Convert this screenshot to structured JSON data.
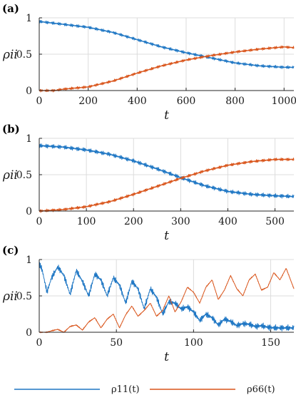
{
  "colors": {
    "series1": "#1f77c4",
    "series2": "#d9541a",
    "grid": "#dcdcdc",
    "axis": "#262626"
  },
  "legend": {
    "placement": "bottom",
    "series1_label": "ρ11(t)",
    "series2_label": "ρ66(t)"
  },
  "chart_data": [
    {
      "type": "line",
      "panel": "(a)",
      "xlabel": "t",
      "ylabel": "ρii",
      "xlim": [
        0,
        1040
      ],
      "ylim": [
        0,
        1
      ],
      "xticks": [
        0,
        200,
        400,
        600,
        800,
        1000
      ],
      "yticks": [
        0,
        0.5,
        1
      ],
      "grid": true,
      "series": [
        {
          "name": "ρ11(t)",
          "x": [
            0,
            100,
            200,
            300,
            400,
            500,
            600,
            700,
            800,
            900,
            1000,
            1040
          ],
          "values": [
            0.95,
            0.91,
            0.87,
            0.8,
            0.7,
            0.6,
            0.52,
            0.45,
            0.38,
            0.34,
            0.32,
            0.32
          ],
          "noise": 0.022
        },
        {
          "name": "ρ66(t)",
          "x": [
            0,
            60,
            100,
            200,
            300,
            400,
            500,
            600,
            700,
            800,
            900,
            1000,
            1040
          ],
          "values": [
            0.0,
            0.0,
            0.02,
            0.05,
            0.13,
            0.24,
            0.34,
            0.42,
            0.48,
            0.53,
            0.57,
            0.6,
            0.59
          ],
          "noise": 0.02
        }
      ]
    },
    {
      "type": "line",
      "panel": "(b)",
      "xlabel": "t",
      "ylabel": "ρii",
      "xlim": [
        0,
        540
      ],
      "ylim": [
        0,
        1
      ],
      "xticks": [
        0,
        100,
        200,
        300,
        400,
        500
      ],
      "yticks": [
        0,
        0.5,
        1
      ],
      "grid": true,
      "series": [
        {
          "name": "ρ11(t)",
          "x": [
            0,
            50,
            100,
            150,
            200,
            250,
            300,
            350,
            400,
            450,
            500,
            540
          ],
          "values": [
            0.9,
            0.88,
            0.84,
            0.78,
            0.69,
            0.58,
            0.46,
            0.35,
            0.27,
            0.23,
            0.21,
            0.2
          ],
          "noise": 0.03
        },
        {
          "name": "ρ66(t)",
          "x": [
            0,
            50,
            100,
            150,
            200,
            250,
            300,
            350,
            400,
            450,
            500,
            540
          ],
          "values": [
            0.0,
            0.02,
            0.06,
            0.13,
            0.23,
            0.34,
            0.45,
            0.55,
            0.63,
            0.68,
            0.71,
            0.71
          ],
          "noise": 0.022
        }
      ]
    },
    {
      "type": "line",
      "panel": "(c)",
      "xlabel": "t",
      "ylabel": "ρii",
      "xlim": [
        0,
        165
      ],
      "ylim": [
        0,
        1
      ],
      "xticks": [
        0,
        50,
        100,
        150
      ],
      "yticks": [
        0,
        0.5,
        1
      ],
      "grid": true,
      "series": [
        {
          "name": "ρ11(t)",
          "x": [
            0,
            2,
            5,
            8,
            12,
            16,
            20,
            24,
            28,
            32,
            36,
            40,
            44,
            48,
            52,
            56,
            60,
            64,
            68,
            72,
            76,
            80,
            84,
            88,
            92,
            96,
            100,
            104,
            108,
            112,
            116,
            120,
            124,
            128,
            132,
            136,
            140,
            144,
            148,
            152,
            156,
            160,
            165
          ],
          "values": [
            0.95,
            0.85,
            0.55,
            0.75,
            0.9,
            0.78,
            0.52,
            0.85,
            0.7,
            0.5,
            0.8,
            0.72,
            0.5,
            0.75,
            0.65,
            0.4,
            0.7,
            0.6,
            0.32,
            0.6,
            0.48,
            0.25,
            0.42,
            0.4,
            0.32,
            0.35,
            0.28,
            0.16,
            0.25,
            0.2,
            0.1,
            0.18,
            0.15,
            0.09,
            0.12,
            0.11,
            0.08,
            0.09,
            0.07,
            0.06,
            0.06,
            0.06,
            0.06
          ],
          "noise": 0.045
        },
        {
          "name": "ρ66(t)",
          "x": [
            0,
            5,
            8,
            12,
            16,
            20,
            24,
            28,
            32,
            36,
            40,
            44,
            48,
            52,
            56,
            60,
            64,
            68,
            72,
            76,
            80,
            84,
            88,
            92,
            96,
            100,
            104,
            108,
            112,
            116,
            120,
            124,
            128,
            132,
            136,
            140,
            144,
            148,
            152,
            156,
            160,
            165
          ],
          "values": [
            0.0,
            0.0,
            0.02,
            0.04,
            0.0,
            0.08,
            0.1,
            0.03,
            0.14,
            0.2,
            0.06,
            0.18,
            0.25,
            0.06,
            0.24,
            0.36,
            0.22,
            0.3,
            0.4,
            0.22,
            0.3,
            0.5,
            0.28,
            0.42,
            0.62,
            0.55,
            0.4,
            0.62,
            0.72,
            0.45,
            0.58,
            0.78,
            0.6,
            0.5,
            0.72,
            0.8,
            0.58,
            0.62,
            0.82,
            0.72,
            0.88,
            0.6
          ],
          "noise": 0.008
        }
      ]
    }
  ]
}
